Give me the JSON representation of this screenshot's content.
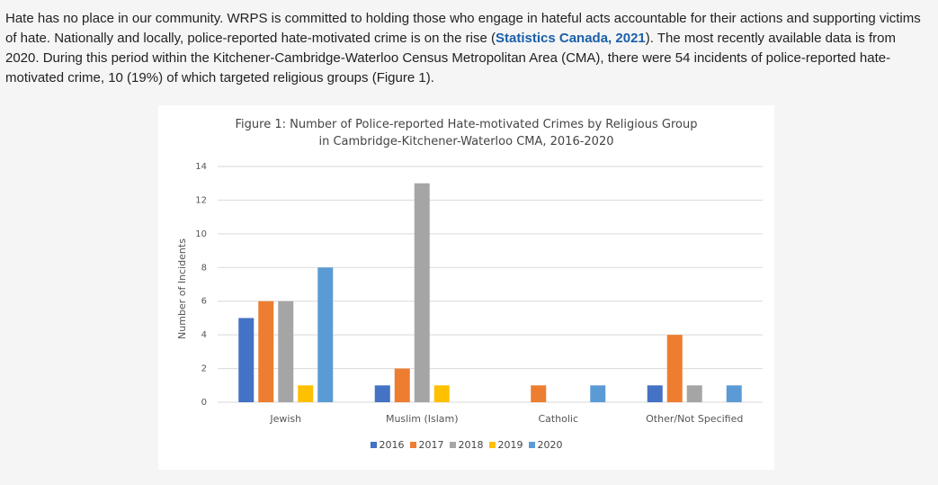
{
  "paragraph": {
    "text_before_link": "Hate has no place in our community. WRPS is committed to holding those who engage in hateful acts accountable for their actions and supporting victims of hate. Nationally and locally, police-reported hate-motivated crime is on the rise (",
    "link_text": "Statistics Canada, 2021",
    "text_after_link": "). The most recently available data is from 2020. During this period within the Kitchener-Cambridge-Waterloo Census Metropolitan Area (CMA), there were 54 incidents of police-reported hate-motivated crime, 10 (19%) of which targeted religious groups (Figure 1)."
  },
  "chart_data": {
    "type": "bar",
    "title_line1": "Figure 1: Number of Police-reported Hate-motivated Crimes by Religious Group",
    "title_line2": "in Cambridge-Kitchener-Waterloo CMA, 2016-2020",
    "xlabel": "",
    "ylabel": "Number of Incidents",
    "ylim": [
      0,
      14
    ],
    "yticks": [
      0,
      2,
      4,
      6,
      8,
      10,
      12,
      14
    ],
    "grid": true,
    "legend_position": "bottom",
    "categories": [
      "Jewish",
      "Muslim (Islam)",
      "Catholic",
      "Other/Not Specified"
    ],
    "series": [
      {
        "name": "2016",
        "color": "#4472c4",
        "values": [
          5,
          1,
          0,
          1
        ]
      },
      {
        "name": "2017",
        "color": "#ed7d31",
        "values": [
          6,
          2,
          1,
          4
        ]
      },
      {
        "name": "2018",
        "color": "#a5a5a5",
        "values": [
          6,
          13,
          0,
          1
        ]
      },
      {
        "name": "2019",
        "color": "#ffc000",
        "values": [
          1,
          1,
          0,
          0
        ]
      },
      {
        "name": "2020",
        "color": "#5b9bd5",
        "values": [
          8,
          0,
          1,
          1
        ]
      }
    ]
  }
}
